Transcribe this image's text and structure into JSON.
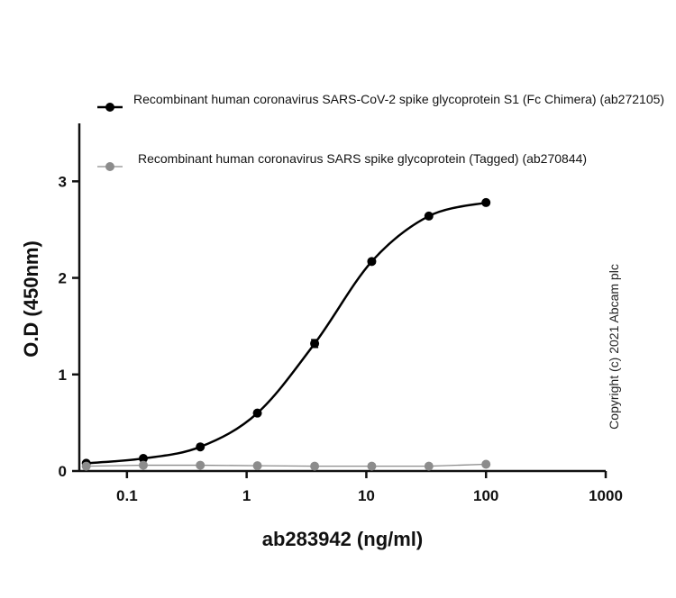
{
  "chart_data": {
    "type": "line",
    "xlabel": "ab283942 (ng/ml)",
    "ylabel": "O.D (450nm)",
    "annotation": "Copyright (c) 2021 Abcam plc",
    "log_x": true,
    "xlim": [
      0.04,
      1000
    ],
    "xticks": [
      0.1,
      1,
      10,
      100,
      1000
    ],
    "ylim": [
      0,
      3.6
    ],
    "yticks": [
      0,
      1,
      2,
      3
    ],
    "x": [
      0.0457,
      0.137,
      0.41,
      1.23,
      3.7,
      11.1,
      33.3,
      100
    ],
    "series": [
      {
        "name": "Recombinant human coronavirus SARS-CoV-2 spike glycoprotein S1 (Fc Chimera) (ab272105)",
        "color": "#000000",
        "smooth": true,
        "values": [
          0.08,
          0.13,
          0.25,
          0.6,
          1.32,
          2.17,
          2.64,
          2.78
        ],
        "errors": [
          null,
          null,
          null,
          null,
          0.04,
          null,
          null,
          null
        ]
      },
      {
        "name": "Recombinant human coronavirus SARS spike glycoprotein (Tagged) (ab270844)",
        "color": "#8c8c8c",
        "smooth": false,
        "values": [
          0.05,
          0.06,
          0.06,
          0.055,
          0.05,
          0.05,
          0.05,
          0.07
        ]
      }
    ]
  }
}
